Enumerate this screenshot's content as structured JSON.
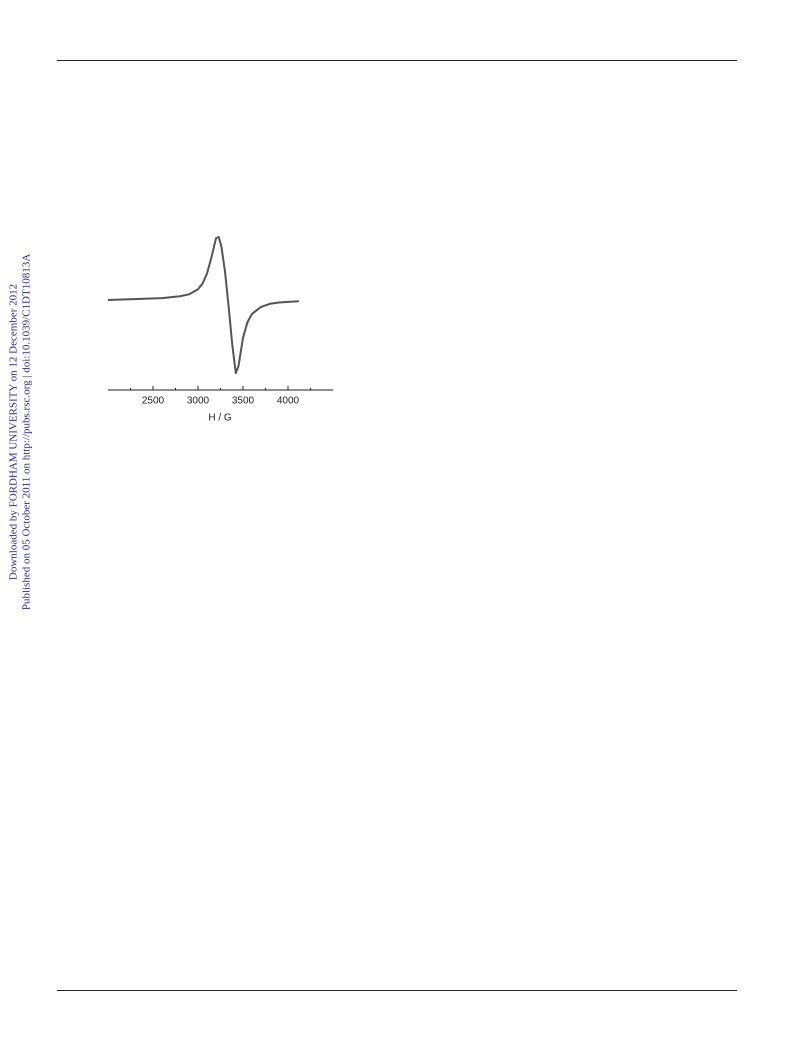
{
  "sidebar": {
    "line1": "Downloaded by FORDHAM UNIVERSITY on 12 December 2012",
    "line2": "Published on 05 October 2011 on http://pubs.rsc.org | doi:10.1039/C1DT10813A"
  },
  "chart_data": {
    "type": "line",
    "xlabel": "H / G",
    "x": [
      2000,
      2200,
      2400,
      2600,
      2800,
      2900,
      3000,
      3050,
      3100,
      3150,
      3200,
      3230,
      3260,
      3300,
      3340,
      3380,
      3420,
      3450,
      3500,
      3550,
      3600,
      3700,
      3800,
      3900,
      4000,
      4120
    ],
    "series": [
      {
        "color": "#555555",
        "values": [
          0,
          0.01,
          0.02,
          0.03,
          0.06,
          0.09,
          0.17,
          0.26,
          0.42,
          0.68,
          0.98,
          1.0,
          0.85,
          0.45,
          -0.1,
          -0.7,
          -1.16,
          -1.05,
          -0.6,
          -0.35,
          -0.22,
          -0.11,
          -0.06,
          -0.04,
          -0.03,
          -0.02
        ]
      }
    ],
    "xlim": [
      2000,
      4500
    ],
    "xticks": [
      2500,
      3000,
      3500,
      4000
    ],
    "xminorticks": [
      2250,
      2750,
      3250,
      3750,
      4250
    ],
    "ylim": [
      -1.3,
      1.1
    ]
  }
}
